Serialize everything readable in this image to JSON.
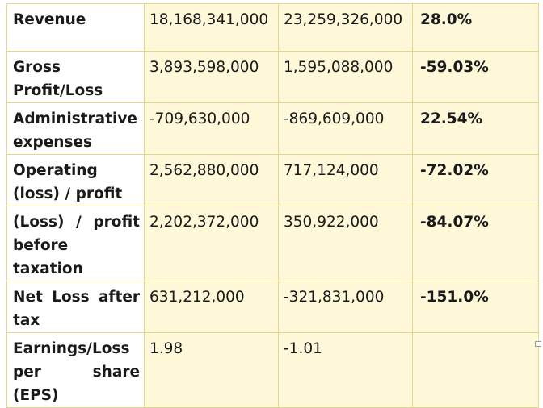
{
  "rows": [
    {
      "label": "Revenue",
      "v1": "18,168,341,000",
      "v2": "23,259,326,000",
      "change": "28.0%"
    },
    {
      "label": "Gross Profit/Loss",
      "v1": "3,893,598,000",
      "v2": "1,595,088,000",
      "change": "-59.03%"
    },
    {
      "label": "Administrative expenses",
      "v1": "-709,630,000",
      "v2": "-869,609,000",
      "change": "22.54%"
    },
    {
      "label": "Operating (loss) / profit",
      "v1": "2,562,880,000",
      "v2": "717,124,000",
      "change": "-72.02%"
    },
    {
      "label": "(Loss) / profit before taxation",
      "v1": "2,202,372,000",
      "v2": "350,922,000",
      "change": "-84.07%"
    },
    {
      "label": "Net Loss after tax",
      "v1": "631,212,000",
      "v2": "-321,831,000",
      "change": "-151.0%"
    },
    {
      "label": "Earnings/Loss per share (EPS)",
      "v1": "1.98",
      "v2": "-1.01",
      "change": ""
    }
  ]
}
